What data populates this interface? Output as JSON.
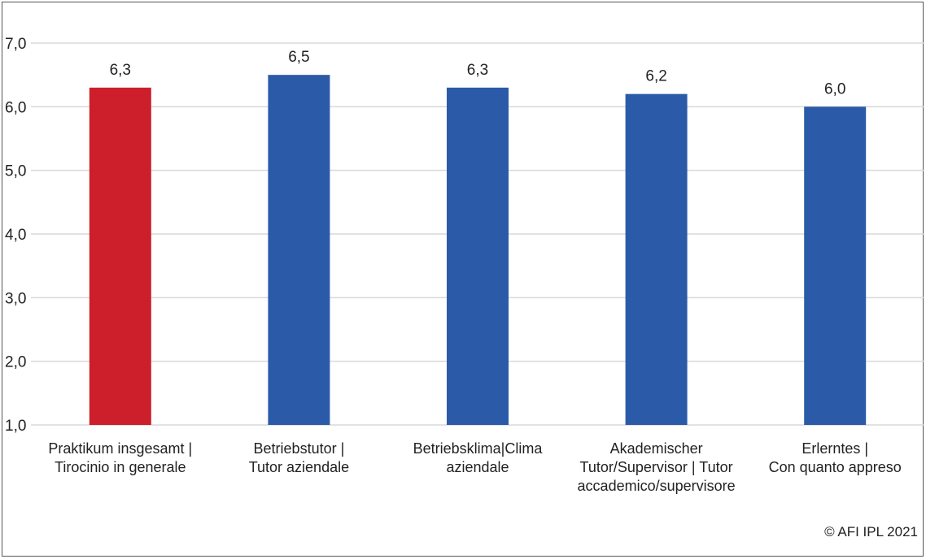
{
  "chart_data": {
    "type": "bar",
    "categories": [
      [
        "Praktikum insgesamt |",
        "Tirocinio in generale"
      ],
      [
        "Betriebstutor |",
        "Tutor aziendale"
      ],
      [
        "Betriebsklima|Clima",
        "aziendale"
      ],
      [
        "Akademischer",
        "Tutor/Supervisor | Tutor",
        "accademico/supervisore"
      ],
      [
        "Erlerntes |",
        "Con quanto appreso"
      ]
    ],
    "values": [
      6.3,
      6.5,
      6.3,
      6.2,
      6.0
    ],
    "data_labels": [
      "6,3",
      "6,5",
      "6,3",
      "6,2",
      "6,0"
    ],
    "bar_colors": [
      "#cc1f2b",
      "#2b5ba8",
      "#2b5ba8",
      "#2b5ba8",
      "#2b5ba8"
    ],
    "ylim": [
      1.0,
      7.0
    ],
    "yticks": [
      1.0,
      2.0,
      3.0,
      4.0,
      5.0,
      6.0,
      7.0
    ],
    "ytick_labels": [
      "1,0",
      "2,0",
      "3,0",
      "4,0",
      "5,0",
      "6,0",
      "7,0"
    ],
    "grid": true,
    "gridline_color": "#d9d9d9",
    "title": "",
    "xlabel": "",
    "ylabel": ""
  },
  "copyright": "© AFI IPL 2021"
}
